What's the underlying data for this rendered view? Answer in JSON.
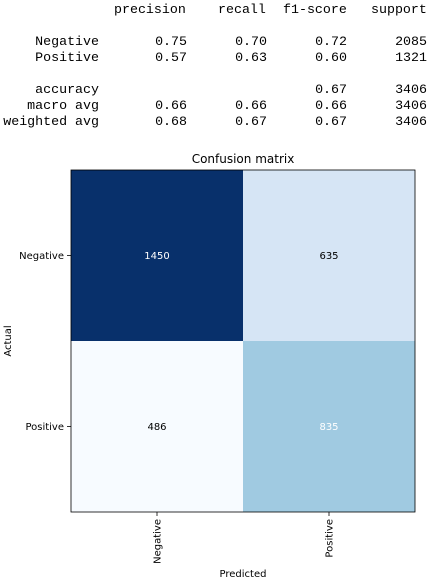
{
  "report": {
    "headers": [
      "precision",
      "recall",
      "f1-score",
      "support"
    ],
    "rows": [
      {
        "label": "Negative",
        "values": [
          "0.75",
          "0.70",
          "0.72",
          "2085"
        ]
      },
      {
        "label": "Positive",
        "values": [
          "0.57",
          "0.63",
          "0.60",
          "1321"
        ]
      },
      {
        "label": "accuracy",
        "values": [
          "",
          "",
          "0.67",
          "3406"
        ]
      },
      {
        "label": "macro avg",
        "values": [
          "0.66",
          "0.66",
          "0.66",
          "3406"
        ]
      },
      {
        "label": "weighted avg",
        "values": [
          "0.68",
          "0.67",
          "0.67",
          "3406"
        ]
      }
    ]
  },
  "chart_data": {
    "type": "heatmap",
    "title": "Confusion matrix",
    "xlabel": "Predicted",
    "ylabel": "Actual",
    "x_categories": [
      "Negative",
      "Positive"
    ],
    "y_categories": [
      "Negative",
      "Positive"
    ],
    "values": [
      [
        1450,
        635
      ],
      [
        486,
        835
      ]
    ],
    "colormap": "Blues",
    "cell_colors": [
      [
        "#08306b",
        "#d6e5f5"
      ],
      [
        "#f7fbff",
        "#a0cae1"
      ]
    ],
    "text_colors": [
      [
        "#ffffff",
        "#000000"
      ],
      [
        "#000000",
        "#ffffff"
      ]
    ]
  }
}
